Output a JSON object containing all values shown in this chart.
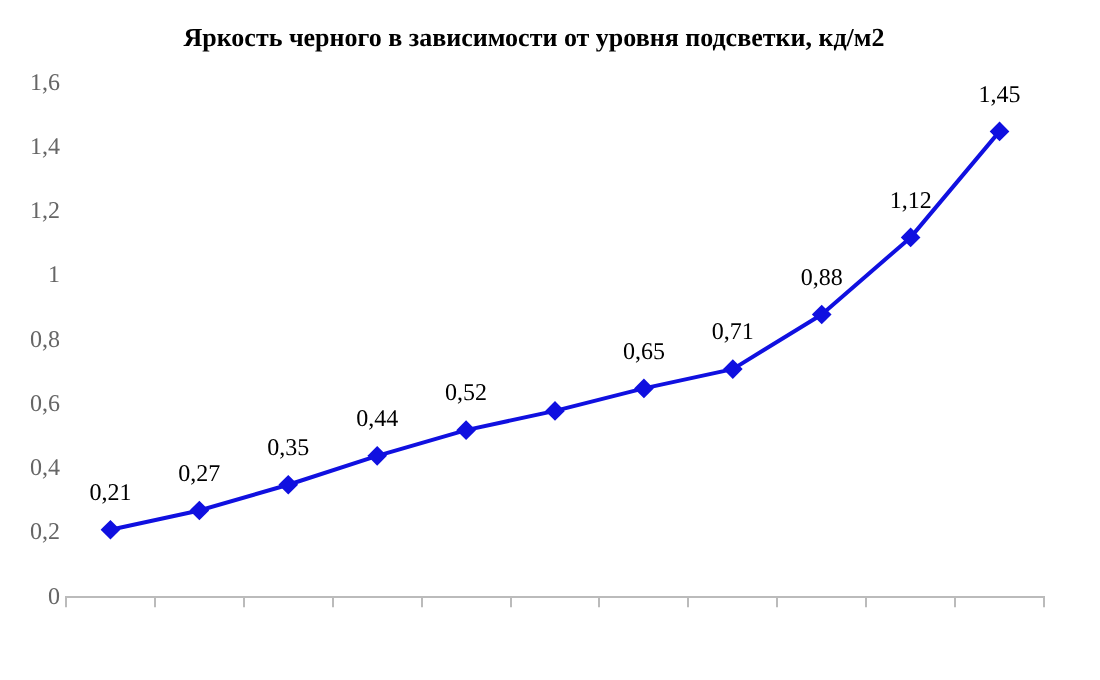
{
  "chart_data": {
    "type": "line",
    "title": "Яркость черного в зависимости от уровня подсветки, кд/м2",
    "categories": [
      null,
      null,
      null,
      null,
      null,
      null,
      null,
      null,
      null,
      null,
      null
    ],
    "series": [
      {
        "color": "#1010e0",
        "values": [
          0.21,
          0.27,
          0.35,
          0.44,
          0.52,
          0.58,
          0.65,
          0.71,
          0.88,
          1.12,
          1.45
        ],
        "value_labels": [
          "0,21",
          "0,27",
          "0,35",
          "0,44",
          "0,52",
          null,
          "0,65",
          "0,71",
          "0,88",
          "1,12",
          "1,45"
        ]
      }
    ],
    "ylim": [
      0,
      1.6
    ],
    "yticks": [
      {
        "value": 0,
        "label": "0"
      },
      {
        "value": 0.2,
        "label": "0,2"
      },
      {
        "value": 0.4,
        "label": "0,4"
      },
      {
        "value": 0.6,
        "label": "0,6"
      },
      {
        "value": 0.8,
        "label": "0,8"
      },
      {
        "value": 1,
        "label": "1"
      },
      {
        "value": 1.2,
        "label": "1,2"
      },
      {
        "value": 1.4,
        "label": "1,4"
      },
      {
        "value": 1.6,
        "label": "1,6"
      }
    ],
    "marker": "diamond",
    "legend": false,
    "grid": false
  }
}
